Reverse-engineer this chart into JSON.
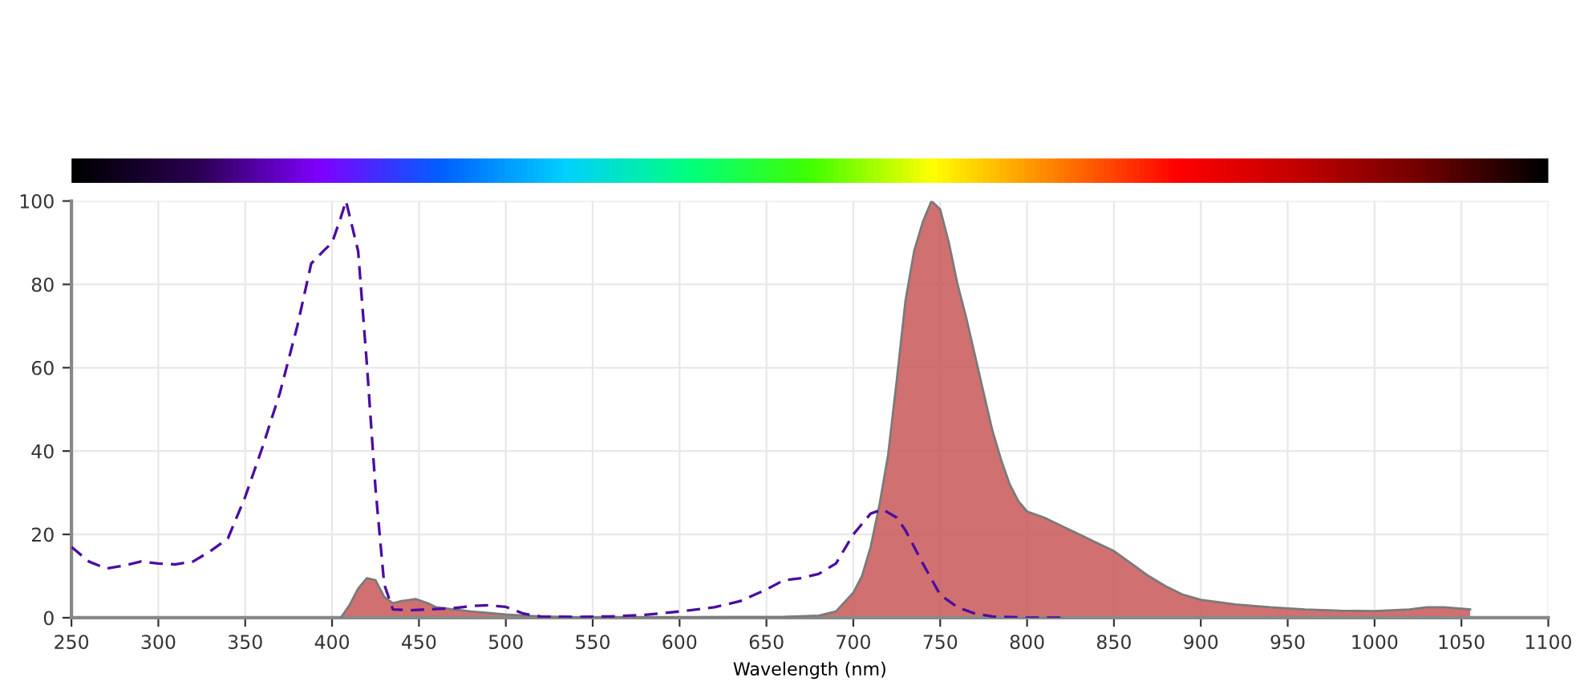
{
  "chart_data": {
    "type": "area",
    "xlabel": "Wavelength (nm)",
    "xlim": [
      250,
      1100
    ],
    "xticks": [
      250,
      300,
      350,
      400,
      450,
      500,
      550,
      600,
      650,
      700,
      750,
      800,
      850,
      900,
      950,
      1000,
      1050,
      1100
    ],
    "ylim": [
      0,
      100
    ],
    "yticks": [
      0,
      20,
      40,
      60,
      80,
      100
    ],
    "grid": true,
    "series": [
      {
        "color": "#c95757",
        "x": [
          405,
          410,
          415,
          420,
          425,
          430,
          435,
          440,
          448,
          455,
          460,
          470,
          480,
          500,
          520,
          540,
          600,
          660,
          680,
          690,
          700,
          705,
          710,
          715,
          720,
          725,
          730,
          735,
          740,
          745,
          750,
          755,
          760,
          765,
          770,
          775,
          780,
          785,
          790,
          795,
          800,
          810,
          820,
          830,
          840,
          850,
          860,
          870,
          880,
          890,
          900,
          920,
          940,
          960,
          980,
          1000,
          1020,
          1030,
          1040,
          1050,
          1055
        ],
        "values": [
          0,
          3,
          7,
          9.5,
          9,
          5,
          3.5,
          4,
          4.5,
          3.5,
          2.5,
          2,
          1.5,
          0.8,
          0.3,
          0.1,
          0.1,
          0.2,
          0.5,
          1.5,
          6,
          10,
          17,
          27,
          39,
          57,
          76,
          88,
          95,
          100,
          98,
          90,
          80,
          72,
          63,
          54,
          45,
          38,
          32,
          28,
          25.5,
          24,
          22,
          20,
          18,
          16,
          13,
          10,
          7.5,
          5.5,
          4.3,
          3.2,
          2.5,
          2,
          1.7,
          1.6,
          2,
          2.5,
          2.5,
          2.2,
          2
        ]
      },
      {
        "type": "line",
        "line_style": "dashed",
        "color": "#4b0ea0",
        "x": [
          250,
          260,
          270,
          280,
          290,
          300,
          310,
          320,
          330,
          340,
          350,
          360,
          370,
          380,
          388,
          395,
          400,
          405,
          408,
          415,
          420,
          425,
          430,
          435,
          445,
          455,
          470,
          480,
          490,
          500,
          510,
          520,
          540,
          560,
          580,
          600,
          620,
          635,
          650,
          660,
          670,
          680,
          690,
          700,
          710,
          717,
          725,
          730,
          740,
          750,
          760,
          770,
          780,
          800,
          820
        ],
        "values": [
          17,
          13.5,
          11.8,
          12.5,
          13.5,
          13,
          12.8,
          13.5,
          16,
          19,
          29,
          41,
          54,
          70,
          85,
          88,
          90,
          96,
          100,
          88,
          61,
          31,
          8,
          2,
          1.8,
          2,
          2.3,
          2.8,
          3,
          2.6,
          1,
          0.3,
          0.2,
          0.3,
          0.7,
          1.5,
          2.5,
          4,
          6.8,
          9,
          9.5,
          10.5,
          13,
          20,
          25,
          26,
          24,
          21,
          13,
          5.5,
          2.5,
          1,
          0.3,
          0,
          0
        ]
      }
    ]
  }
}
